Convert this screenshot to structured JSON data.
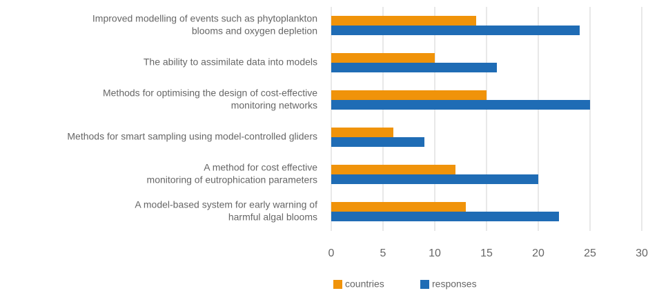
{
  "chart_data": {
    "type": "bar",
    "orientation": "horizontal",
    "categories": [
      [
        "Improved modelling of events such as phytoplankton",
        "blooms and oxygen depletion"
      ],
      [
        "The ability to assimilate data into models"
      ],
      [
        "Methods for optimising the design of cost-effective",
        "monitoring networks"
      ],
      [
        "Methods for smart sampling using model-controlled gliders"
      ],
      [
        "A method for cost effective",
        "monitoring of eutrophication parameters"
      ],
      [
        "A model-based system for early warning of",
        "harmful algal blooms"
      ]
    ],
    "series": [
      {
        "name": "countries",
        "color": "#f0930a",
        "values": [
          14,
          10,
          15,
          6,
          12,
          13
        ]
      },
      {
        "name": "responses",
        "color": "#1f6cb5",
        "values": [
          24,
          16,
          25,
          9,
          20,
          22
        ]
      }
    ],
    "xlim": [
      0,
      30
    ],
    "xticks": [
      0,
      5,
      10,
      15,
      20,
      25,
      30
    ],
    "grid": true,
    "legend": "bottom"
  }
}
